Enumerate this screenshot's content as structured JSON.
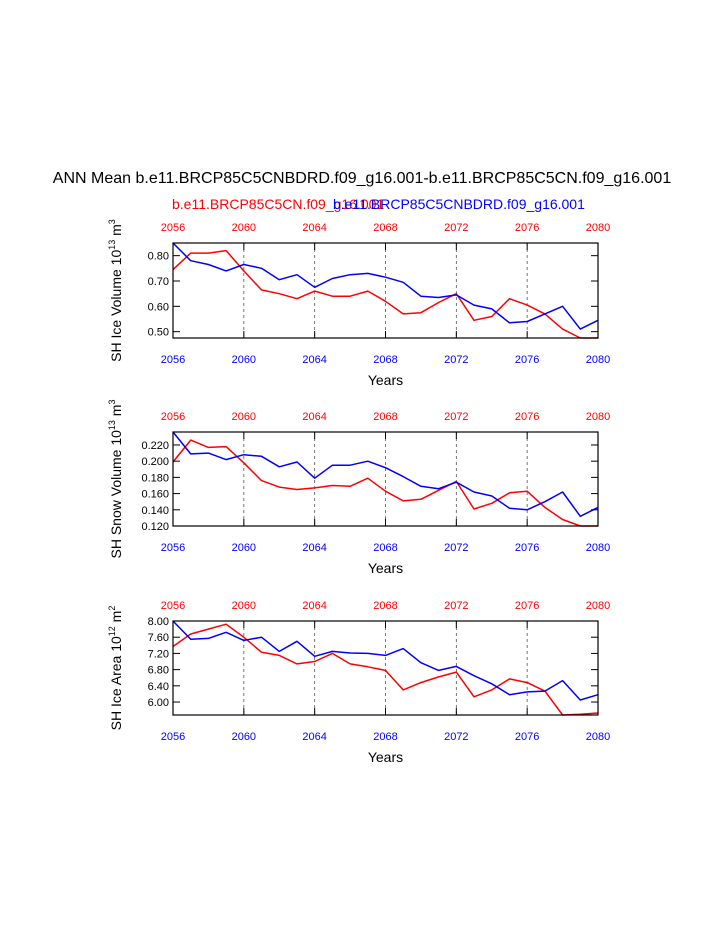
{
  "title": "ANN Mean b.e11.BRCP85C5CNBDRD.f09_g16.001-b.e11.BRCP85C5CN.f09_g16.001",
  "legend": {
    "red_label": "b.e11.BRCP85C5CN.f09_g16.001",
    "blue_label": "b.e11.BRCP85C5CNBDRD.f09_g16.001"
  },
  "colors": {
    "red": "#ff0000",
    "blue": "#0000ff",
    "axis": "#000000",
    "grid": "#555555"
  },
  "chart_data": [
    {
      "type": "line",
      "xlabel": "Years",
      "ylabel": "SH Ice Volume 10<sup>13</sup> m<sup>3</sup>",
      "xlim": [
        2056,
        2080
      ],
      "ylim": [
        0.475,
        0.85
      ],
      "ytick_values": [
        0.5,
        0.6,
        0.7,
        0.8
      ],
      "ytick_labels": [
        "0.50",
        "0.60",
        "0.70",
        "0.80"
      ],
      "xticks": [
        2056,
        2060,
        2064,
        2068,
        2072,
        2076,
        2080
      ],
      "xtick_labels": [
        "2056",
        "2060",
        "2064",
        "2068",
        "2072",
        "2076",
        "2080"
      ],
      "grid_x": [
        2060,
        2064,
        2068,
        2072,
        2076
      ],
      "x": [
        2056,
        2057,
        2058,
        2059,
        2060,
        2061,
        2062,
        2063,
        2064,
        2065,
        2066,
        2067,
        2068,
        2069,
        2070,
        2071,
        2072,
        2073,
        2074,
        2075,
        2076,
        2077,
        2078,
        2079,
        2080
      ],
      "series": [
        {
          "name": "b.e11.BRCP85C5CN.f09_g16.001",
          "color": "red",
          "values": [
            0.745,
            0.81,
            0.81,
            0.82,
            0.74,
            0.665,
            0.65,
            0.63,
            0.66,
            0.64,
            0.64,
            0.66,
            0.62,
            0.57,
            0.575,
            0.615,
            0.65,
            0.545,
            0.56,
            0.63,
            0.605,
            0.57,
            0.51,
            0.475,
            0.475
          ]
        },
        {
          "name": "b.e11.BRCP85C5CNBDRD.f09_g16.001",
          "color": "blue",
          "values": [
            0.85,
            0.78,
            0.765,
            0.74,
            0.765,
            0.75,
            0.705,
            0.725,
            0.675,
            0.71,
            0.725,
            0.73,
            0.715,
            0.695,
            0.64,
            0.635,
            0.645,
            0.605,
            0.59,
            0.535,
            0.54,
            0.57,
            0.6,
            0.51,
            0.545
          ]
        }
      ]
    },
    {
      "type": "line",
      "xlabel": "Years",
      "ylabel": "SH Snow Volume 10<sup>13</sup> m<sup>3</sup>",
      "xlim": [
        2056,
        2080
      ],
      "ylim": [
        0.12,
        0.236
      ],
      "ytick_values": [
        0.12,
        0.14,
        0.16,
        0.18,
        0.2,
        0.22
      ],
      "ytick_labels": [
        "0.120",
        "0.140",
        "0.160",
        "0.180",
        "0.200",
        "0.220"
      ],
      "xticks": [
        2056,
        2060,
        2064,
        2068,
        2072,
        2076,
        2080
      ],
      "xtick_labels": [
        "2056",
        "2060",
        "2064",
        "2068",
        "2072",
        "2076",
        "2080"
      ],
      "grid_x": [
        2060,
        2064,
        2068,
        2072,
        2076
      ],
      "x": [
        2056,
        2057,
        2058,
        2059,
        2060,
        2061,
        2062,
        2063,
        2064,
        2065,
        2066,
        2067,
        2068,
        2069,
        2070,
        2071,
        2072,
        2073,
        2074,
        2075,
        2076,
        2077,
        2078,
        2079,
        2080
      ],
      "series": [
        {
          "name": "b.e11.BRCP85C5CN.f09_g16.001",
          "color": "red",
          "values": [
            0.199,
            0.226,
            0.217,
            0.218,
            0.198,
            0.176,
            0.168,
            0.165,
            0.167,
            0.17,
            0.169,
            0.179,
            0.163,
            0.151,
            0.153,
            0.164,
            0.175,
            0.141,
            0.148,
            0.161,
            0.163,
            0.143,
            0.128,
            0.12,
            0.12
          ]
        },
        {
          "name": "b.e11.BRCP85C5CNBDRD.f09_g16.001",
          "color": "blue",
          "values": [
            0.236,
            0.209,
            0.21,
            0.202,
            0.208,
            0.206,
            0.193,
            0.199,
            0.179,
            0.195,
            0.195,
            0.2,
            0.192,
            0.181,
            0.169,
            0.166,
            0.174,
            0.162,
            0.157,
            0.142,
            0.14,
            0.15,
            0.162,
            0.132,
            0.143
          ]
        }
      ]
    },
    {
      "type": "line",
      "xlabel": "Years",
      "ylabel": "SH Ice Area 10<sup>12</sup> m<sup>2</sup>",
      "xlim": [
        2056,
        2080
      ],
      "ylim": [
        5.68,
        8.0
      ],
      "ytick_values": [
        6.0,
        6.4,
        6.8,
        7.2,
        7.6,
        8.0
      ],
      "ytick_labels": [
        "6.00",
        "6.40",
        "6.80",
        "7.20",
        "7.60",
        "8.00"
      ],
      "xticks": [
        2056,
        2060,
        2064,
        2068,
        2072,
        2076,
        2080
      ],
      "xtick_labels": [
        "2056",
        "2060",
        "2064",
        "2068",
        "2072",
        "2076",
        "2080"
      ],
      "grid_x": [
        2060,
        2064,
        2068,
        2072,
        2076
      ],
      "x": [
        2056,
        2057,
        2058,
        2059,
        2060,
        2061,
        2062,
        2063,
        2064,
        2065,
        2066,
        2067,
        2068,
        2069,
        2070,
        2071,
        2072,
        2073,
        2074,
        2075,
        2076,
        2077,
        2078,
        2079,
        2080
      ],
      "series": [
        {
          "name": "b.e11.BRCP85C5CN.f09_g16.001",
          "color": "red",
          "values": [
            7.37,
            7.68,
            7.8,
            7.92,
            7.6,
            7.23,
            7.15,
            6.94,
            7.0,
            7.2,
            6.94,
            6.87,
            6.78,
            6.3,
            6.48,
            6.62,
            6.74,
            6.13,
            6.3,
            6.57,
            6.48,
            6.27,
            5.68,
            5.7,
            5.73
          ]
        },
        {
          "name": "b.e11.BRCP85C5CNBDRD.f09_g16.001",
          "color": "blue",
          "values": [
            8.0,
            7.55,
            7.57,
            7.72,
            7.52,
            7.6,
            7.25,
            7.5,
            7.13,
            7.25,
            7.21,
            7.2,
            7.15,
            7.32,
            6.97,
            6.78,
            6.88,
            6.65,
            6.45,
            6.18,
            6.25,
            6.27,
            6.53,
            6.05,
            6.18
          ]
        }
      ]
    }
  ]
}
